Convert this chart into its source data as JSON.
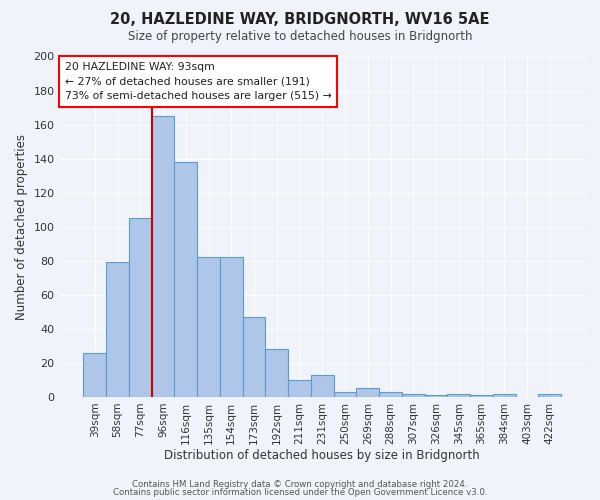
{
  "title": "20, HAZLEDINE WAY, BRIDGNORTH, WV16 5AE",
  "subtitle": "Size of property relative to detached houses in Bridgnorth",
  "xlabel": "Distribution of detached houses by size in Bridgnorth",
  "ylabel": "Number of detached properties",
  "categories": [
    "39sqm",
    "58sqm",
    "77sqm",
    "96sqm",
    "116sqm",
    "135sqm",
    "154sqm",
    "173sqm",
    "192sqm",
    "211sqm",
    "231sqm",
    "250sqm",
    "269sqm",
    "288sqm",
    "307sqm",
    "326sqm",
    "345sqm",
    "365sqm",
    "384sqm",
    "403sqm",
    "422sqm"
  ],
  "values": [
    26,
    79,
    105,
    165,
    138,
    82,
    82,
    47,
    28,
    10,
    13,
    3,
    5,
    3,
    2,
    1,
    2,
    1,
    2,
    0,
    2
  ],
  "bar_color": "#aec6e8",
  "bar_edge_color": "#5b9bd5",
  "background_color": "#f0f4fa",
  "grid_color": "#ffffff",
  "vline_color": "#cc0000",
  "vline_index": 3,
  "ylim": [
    0,
    200
  ],
  "yticks": [
    0,
    20,
    40,
    60,
    80,
    100,
    120,
    140,
    160,
    180,
    200
  ],
  "annotation_title": "20 HAZLEDINE WAY: 93sqm",
  "annotation_line1": "← 27% of detached houses are smaller (191)",
  "annotation_line2": "73% of semi-detached houses are larger (515) →",
  "footer_line1": "Contains HM Land Registry data © Crown copyright and database right 2024.",
  "footer_line2": "Contains public sector information licensed under the Open Government Licence v3.0."
}
